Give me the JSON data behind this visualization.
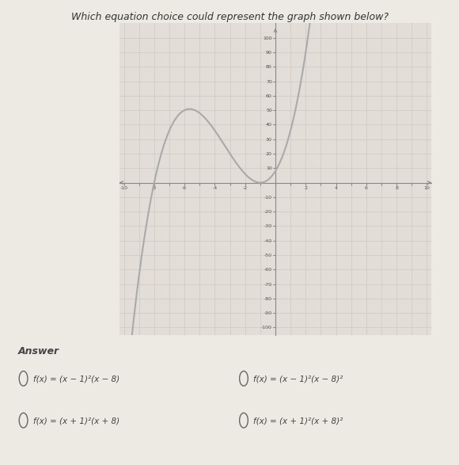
{
  "title": "Which equation choice could represent the graph shown below?",
  "title_fontsize": 9,
  "answer_label": "Answer",
  "answer_choices": [
    "f(x) = (x − 1)²(x − 8)",
    "f(x) = (x − 1)²(x − 8)²",
    "f(x) = (x + 1)²(x + 8)",
    "f(x) = (x + 1)²(x + 8)²"
  ],
  "xlim": [
    -10,
    10
  ],
  "ylim": [
    -100,
    100
  ],
  "xtick_step": 1,
  "ytick_step": 10,
  "curve_color": "#aaaaaa",
  "curve_linewidth": 1.5,
  "background_color": "#ede9e3",
  "plot_bg_color": "#e2ddd7",
  "grid_color": "#d0ccc6",
  "axis_color": "#888888",
  "double_root": -1,
  "single_root": -8
}
